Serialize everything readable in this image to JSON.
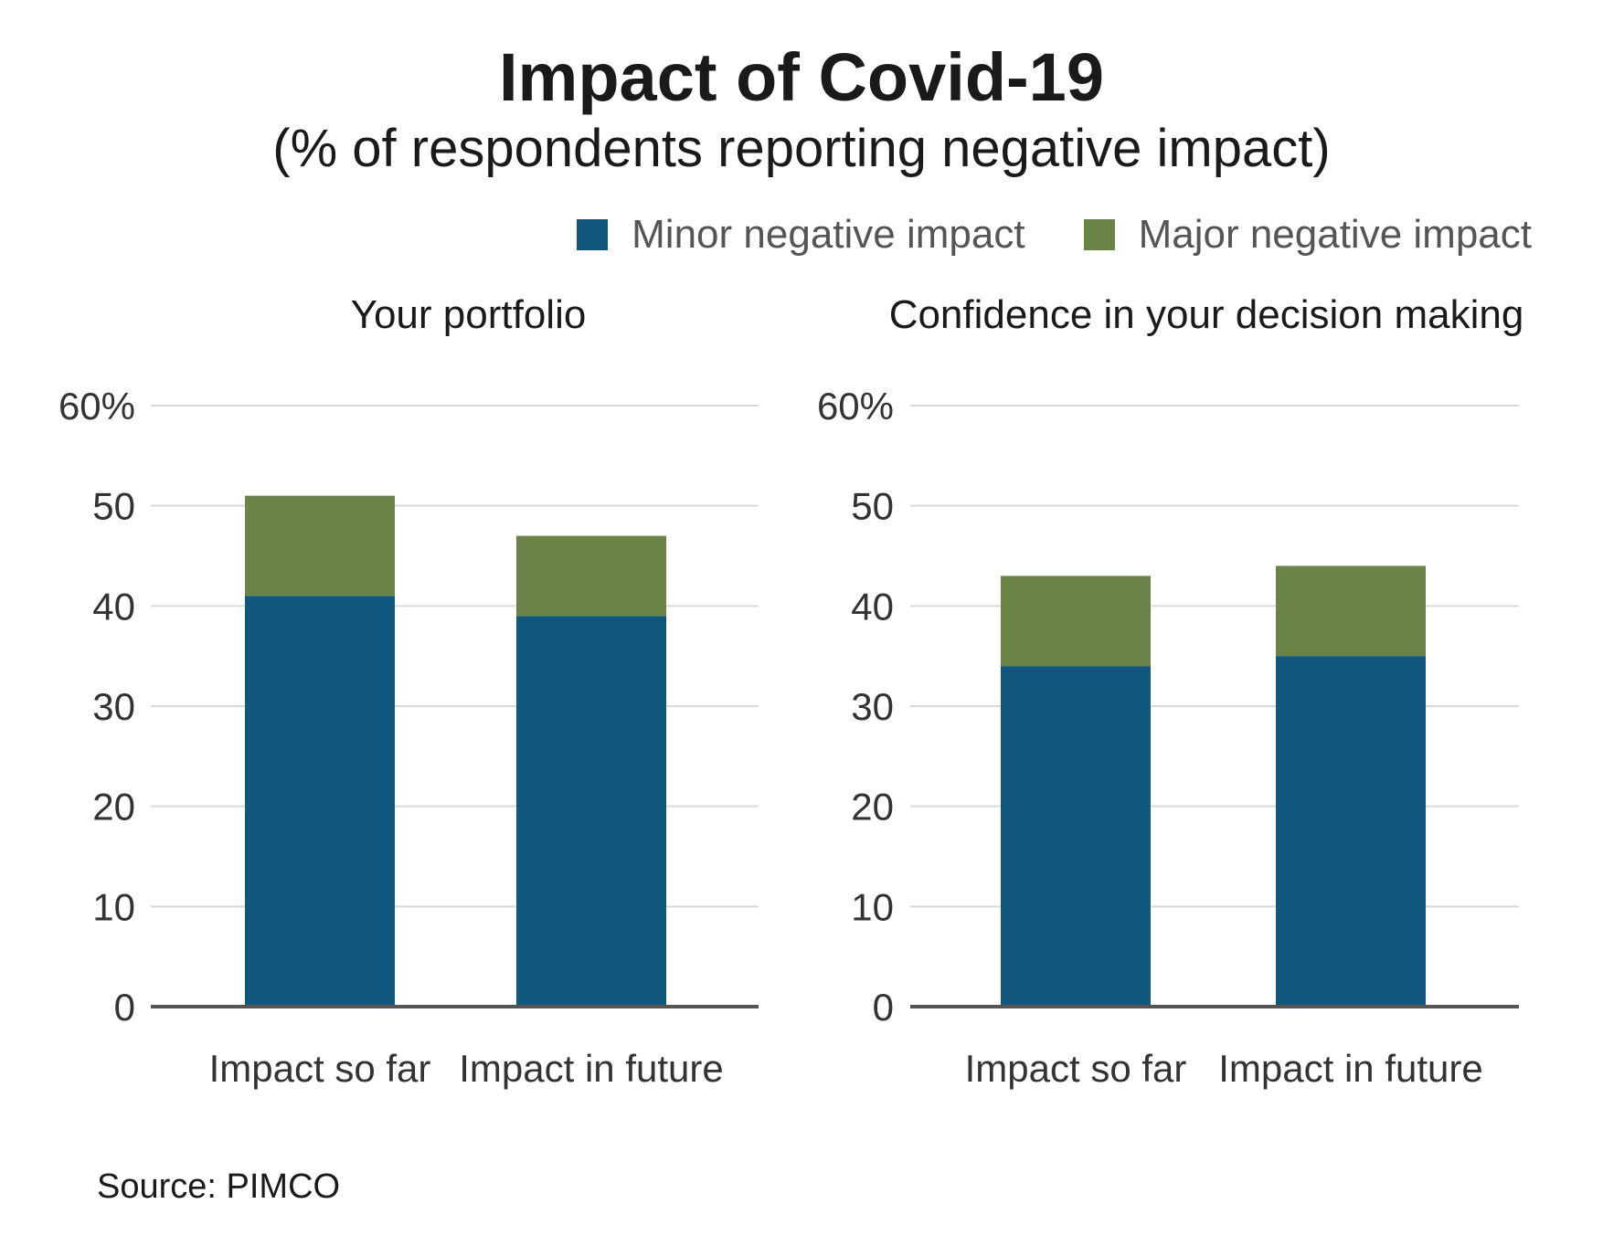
{
  "title": "Impact of Covid-19",
  "subtitle": "(% of respondents reporting negative impact)",
  "legend": {
    "minor": "Minor negative impact",
    "major": "Major negative impact"
  },
  "colors": {
    "minor": "#10577d",
    "major": "#6a8448",
    "grid": "#d9d9d9",
    "axis": "#555555"
  },
  "source": "Source: PIMCO",
  "chart_data": [
    {
      "type": "bar",
      "stacked": true,
      "title": "Your portfolio",
      "categories": [
        "Impact so far",
        "Impact in future"
      ],
      "series": [
        {
          "name": "Minor negative impact",
          "values": [
            41,
            39
          ]
        },
        {
          "name": "Major negative impact",
          "values": [
            10,
            8
          ]
        }
      ],
      "yticks": [
        "0",
        "10",
        "20",
        "30",
        "40",
        "50",
        "60%"
      ],
      "ylim": [
        0,
        60
      ],
      "grid": true
    },
    {
      "type": "bar",
      "stacked": true,
      "title": "Confidence in your decision making",
      "categories": [
        "Impact so far",
        "Impact in future"
      ],
      "series": [
        {
          "name": "Minor negative impact",
          "values": [
            34,
            35
          ]
        },
        {
          "name": "Major negative impact",
          "values": [
            9,
            9
          ]
        }
      ],
      "yticks": [
        "0",
        "10",
        "20",
        "30",
        "40",
        "50",
        "60%"
      ],
      "ylim": [
        0,
        60
      ],
      "grid": true
    }
  ]
}
